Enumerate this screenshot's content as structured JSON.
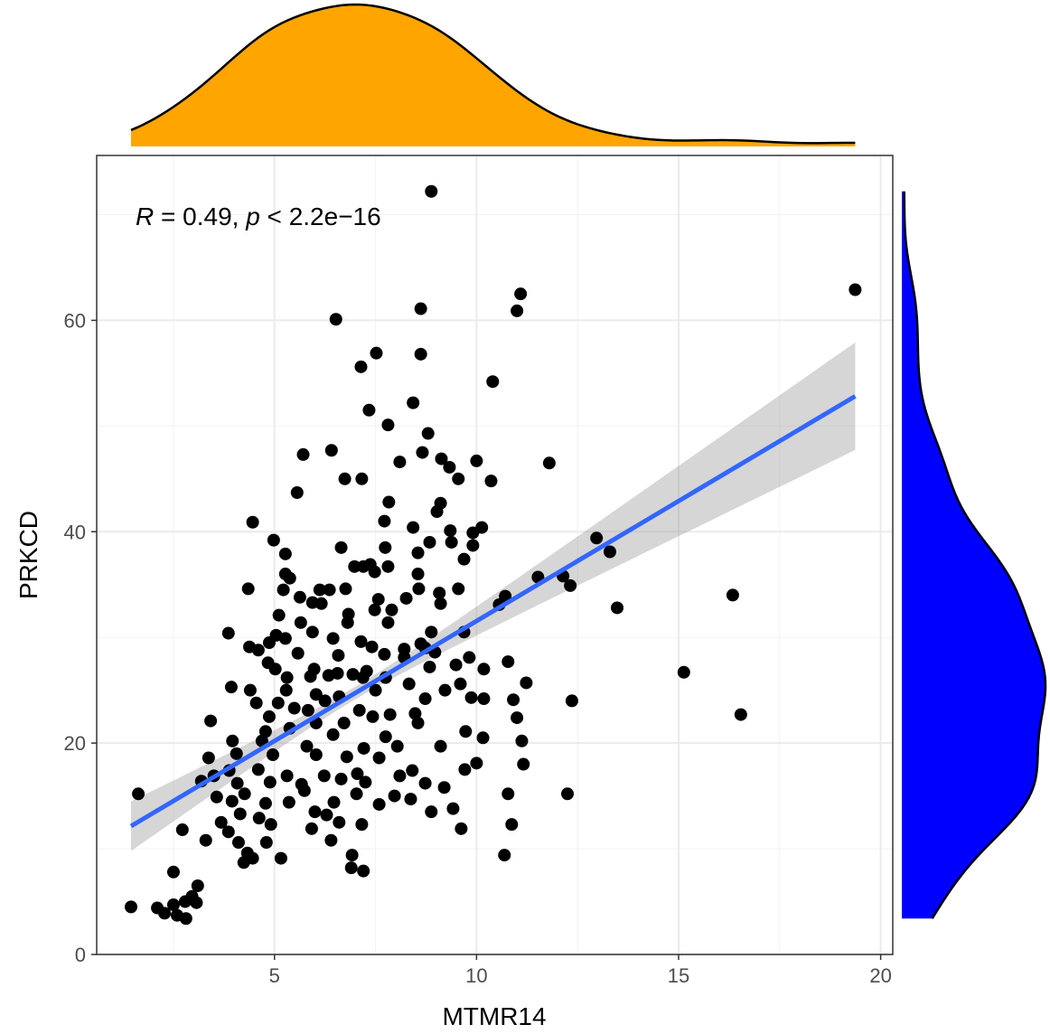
{
  "chart_data": {
    "type": "scatter",
    "xlabel": "MTMR14",
    "ylabel": "PRKCD",
    "xlim": [
      0.6,
      20.3
    ],
    "ylim": [
      0,
      75.6
    ],
    "x_ticks": [
      "5",
      "10",
      "15",
      "20"
    ],
    "y_ticks": [
      "0",
      "20",
      "40",
      "60"
    ],
    "grid": true,
    "annotation": {
      "r_symbol": "R",
      "r_text": " = 0.49, ",
      "p_symbol": "p",
      "p_text": " < 2.2e−16"
    },
    "fit": {
      "method": "linear",
      "intercept": 8.85,
      "slope": 2.27,
      "confidence_band": true
    },
    "marginals": {
      "x_density_color": "#FFA500",
      "y_density_color": "#0000FF"
    },
    "colors": {
      "points": "#000000",
      "fit_line": "#3366FF",
      "band": "#999999"
    },
    "points": [
      [
        8.88,
        72.2
      ],
      [
        19.37,
        62.9
      ],
      [
        11.09,
        62.5
      ],
      [
        11.0,
        60.9
      ],
      [
        8.62,
        61.1
      ],
      [
        6.52,
        60.1
      ],
      [
        8.62,
        56.8
      ],
      [
        7.52,
        56.9
      ],
      [
        7.14,
        55.6
      ],
      [
        10.4,
        54.2
      ],
      [
        8.43,
        52.2
      ],
      [
        7.34,
        51.5
      ],
      [
        7.81,
        50.1
      ],
      [
        8.8,
        49.3
      ],
      [
        8.66,
        47.5
      ],
      [
        5.71,
        47.3
      ],
      [
        6.41,
        47.7
      ],
      [
        11.8,
        46.5
      ],
      [
        8.1,
        46.6
      ],
      [
        9.13,
        46.9
      ],
      [
        10.0,
        46.7
      ],
      [
        9.33,
        46.1
      ],
      [
        6.74,
        45.0
      ],
      [
        7.16,
        45.0
      ],
      [
        9.55,
        45.0
      ],
      [
        10.36,
        44.8
      ],
      [
        5.56,
        43.7
      ],
      [
        7.83,
        42.8
      ],
      [
        9.11,
        42.7
      ],
      [
        9.02,
        41.9
      ],
      [
        7.72,
        41.0
      ],
      [
        4.46,
        40.9
      ],
      [
        8.43,
        40.4
      ],
      [
        9.35,
        40.1
      ],
      [
        9.91,
        39.9
      ],
      [
        10.13,
        40.4
      ],
      [
        4.98,
        39.2
      ],
      [
        8.84,
        39.0
      ],
      [
        9.38,
        39.0
      ],
      [
        9.91,
        38.7
      ],
      [
        12.97,
        39.4
      ],
      [
        6.65,
        38.5
      ],
      [
        7.74,
        38.5
      ],
      [
        8.55,
        38.0
      ],
      [
        13.3,
        38.1
      ],
      [
        5.27,
        37.9
      ],
      [
        9.69,
        37.4
      ],
      [
        6.98,
        36.7
      ],
      [
        7.2,
        36.7
      ],
      [
        7.37,
        36.9
      ],
      [
        7.81,
        36.7
      ],
      [
        7.48,
        36.2
      ],
      [
        5.27,
        36.0
      ],
      [
        8.55,
        36.0
      ],
      [
        5.38,
        35.6
      ],
      [
        11.52,
        35.7
      ],
      [
        12.14,
        35.8
      ],
      [
        4.35,
        34.6
      ],
      [
        12.32,
        34.9
      ],
      [
        5.22,
        34.5
      ],
      [
        6.12,
        34.5
      ],
      [
        6.36,
        34.5
      ],
      [
        6.76,
        34.6
      ],
      [
        8.57,
        34.6
      ],
      [
        9.08,
        34.2
      ],
      [
        9.55,
        34.6
      ],
      [
        10.71,
        33.9
      ],
      [
        16.34,
        34.0
      ],
      [
        5.63,
        33.8
      ],
      [
        5.94,
        33.3
      ],
      [
        6.16,
        33.2
      ],
      [
        7.57,
        33.6
      ],
      [
        8.26,
        33.7
      ],
      [
        9.11,
        33.2
      ],
      [
        10.56,
        33.1
      ],
      [
        13.48,
        32.8
      ],
      [
        7.48,
        32.6
      ],
      [
        6.83,
        32.2
      ],
      [
        7.9,
        32.6
      ],
      [
        5.11,
        32.1
      ],
      [
        5.65,
        31.4
      ],
      [
        7.81,
        31.4
      ],
      [
        6.81,
        31.4
      ],
      [
        3.86,
        30.4
      ],
      [
        5.04,
        30.2
      ],
      [
        5.94,
        30.5
      ],
      [
        8.88,
        30.5
      ],
      [
        9.69,
        30.5
      ],
      [
        5.27,
        29.9
      ],
      [
        6.45,
        29.9
      ],
      [
        4.87,
        29.5
      ],
      [
        7.14,
        29.6
      ],
      [
        7.41,
        29.1
      ],
      [
        4.38,
        29.1
      ],
      [
        4.6,
        28.8
      ],
      [
        8.21,
        28.9
      ],
      [
        8.62,
        29.4
      ],
      [
        5.58,
        28.5
      ],
      [
        6.58,
        28.3
      ],
      [
        7.72,
        28.4
      ],
      [
        8.21,
        28.1
      ],
      [
        8.73,
        29.0
      ],
      [
        8.97,
        28.6
      ],
      [
        9.82,
        28.1
      ],
      [
        10.78,
        27.7
      ],
      [
        4.84,
        27.6
      ],
      [
        5.02,
        27.0
      ],
      [
        5.98,
        27.0
      ],
      [
        7.28,
        26.8
      ],
      [
        8.84,
        27.2
      ],
      [
        9.49,
        27.4
      ],
      [
        10.18,
        27.0
      ],
      [
        5.89,
        26.3
      ],
      [
        5.31,
        26.2
      ],
      [
        6.34,
        26.4
      ],
      [
        6.56,
        26.6
      ],
      [
        6.94,
        26.5
      ],
      [
        7.19,
        26.2
      ],
      [
        7.75,
        26.2
      ],
      [
        8.33,
        25.6
      ],
      [
        7.5,
        25.0
      ],
      [
        11.23,
        25.7
      ],
      [
        3.93,
        25.3
      ],
      [
        4.4,
        25.0
      ],
      [
        5.29,
        25.0
      ],
      [
        6.03,
        24.6
      ],
      [
        6.6,
        24.4
      ],
      [
        8.73,
        24.2
      ],
      [
        9.22,
        25.0
      ],
      [
        9.6,
        25.6
      ],
      [
        9.87,
        24.3
      ],
      [
        10.18,
        24.2
      ],
      [
        12.36,
        24.0
      ],
      [
        10.91,
        24.1
      ],
      [
        4.55,
        23.8
      ],
      [
        5.09,
        23.8
      ],
      [
        5.49,
        23.3
      ],
      [
        5.83,
        23.1
      ],
      [
        6.25,
        24.0
      ],
      [
        7.1,
        23.1
      ],
      [
        7.86,
        22.7
      ],
      [
        8.48,
        22.8
      ],
      [
        7.43,
        22.5
      ],
      [
        11.0,
        22.4
      ],
      [
        16.54,
        22.7
      ],
      [
        15.13,
        26.7
      ],
      [
        3.42,
        22.1
      ],
      [
        4.87,
        22.5
      ],
      [
        6.03,
        21.9
      ],
      [
        6.72,
        21.9
      ],
      [
        8.55,
        21.9
      ],
      [
        4.78,
        21.1
      ],
      [
        5.38,
        21.4
      ],
      [
        9.73,
        21.1
      ],
      [
        6.45,
        20.8
      ],
      [
        7.75,
        20.6
      ],
      [
        10.16,
        20.5
      ],
      [
        11.12,
        20.2
      ],
      [
        3.96,
        20.2
      ],
      [
        4.69,
        20.2
      ],
      [
        4.06,
        19.0
      ],
      [
        5.8,
        19.7
      ],
      [
        7.21,
        19.5
      ],
      [
        8.04,
        19.7
      ],
      [
        9.11,
        19.7
      ],
      [
        3.37,
        18.6
      ],
      [
        4.96,
        18.9
      ],
      [
        6.03,
        18.9
      ],
      [
        6.79,
        18.7
      ],
      [
        7.59,
        18.6
      ],
      [
        11.16,
        18.0
      ],
      [
        10.0,
        18.1
      ],
      [
        3.5,
        16.9
      ],
      [
        3.88,
        17.4
      ],
      [
        4.6,
        17.5
      ],
      [
        5.31,
        16.9
      ],
      [
        6.23,
        16.9
      ],
      [
        7.05,
        17.1
      ],
      [
        8.1,
        16.9
      ],
      [
        8.41,
        17.4
      ],
      [
        9.71,
        17.5
      ],
      [
        3.19,
        16.4
      ],
      [
        4.08,
        16.2
      ],
      [
        4.89,
        16.3
      ],
      [
        5.67,
        16.1
      ],
      [
        6.65,
        16.6
      ],
      [
        7.25,
        16.3
      ],
      [
        8.73,
        16.2
      ],
      [
        1.63,
        15.2
      ],
      [
        10.78,
        15.2
      ],
      [
        12.25,
        15.2
      ],
      [
        9.2,
        15.8
      ],
      [
        3.57,
        14.9
      ],
      [
        4.26,
        15.2
      ],
      [
        5.74,
        15.5
      ],
      [
        7.03,
        15.2
      ],
      [
        7.97,
        15.0
      ],
      [
        8.37,
        14.7
      ],
      [
        3.95,
        14.5
      ],
      [
        4.78,
        14.3
      ],
      [
        5.36,
        14.4
      ],
      [
        6.47,
        14.4
      ],
      [
        7.59,
        14.2
      ],
      [
        9.42,
        13.8
      ],
      [
        8.88,
        13.5
      ],
      [
        4.15,
        13.3
      ],
      [
        4.62,
        12.9
      ],
      [
        6.0,
        13.5
      ],
      [
        6.29,
        13.2
      ],
      [
        3.68,
        12.5
      ],
      [
        4.91,
        12.3
      ],
      [
        6.6,
        12.5
      ],
      [
        7.16,
        12.3
      ],
      [
        10.87,
        12.3
      ],
      [
        2.72,
        11.8
      ],
      [
        3.86,
        11.6
      ],
      [
        5.92,
        11.9
      ],
      [
        9.62,
        11.9
      ],
      [
        3.3,
        10.8
      ],
      [
        4.11,
        10.6
      ],
      [
        4.8,
        10.6
      ],
      [
        6.4,
        10.8
      ],
      [
        4.33,
        9.6
      ],
      [
        5.16,
        9.1
      ],
      [
        6.92,
        9.4
      ],
      [
        10.69,
        9.4
      ],
      [
        4.24,
        8.7
      ],
      [
        4.46,
        9.1
      ],
      [
        6.9,
        8.2
      ],
      [
        7.2,
        7.9
      ],
      [
        2.5,
        7.8
      ],
      [
        3.1,
        6.5
      ],
      [
        1.45,
        4.5
      ],
      [
        2.1,
        4.4
      ],
      [
        2.5,
        4.7
      ],
      [
        2.28,
        3.9
      ],
      [
        2.79,
        5.0
      ],
      [
        2.96,
        5.5
      ],
      [
        3.07,
        4.9
      ],
      [
        2.59,
        3.7
      ],
      [
        2.81,
        3.4
      ]
    ]
  }
}
